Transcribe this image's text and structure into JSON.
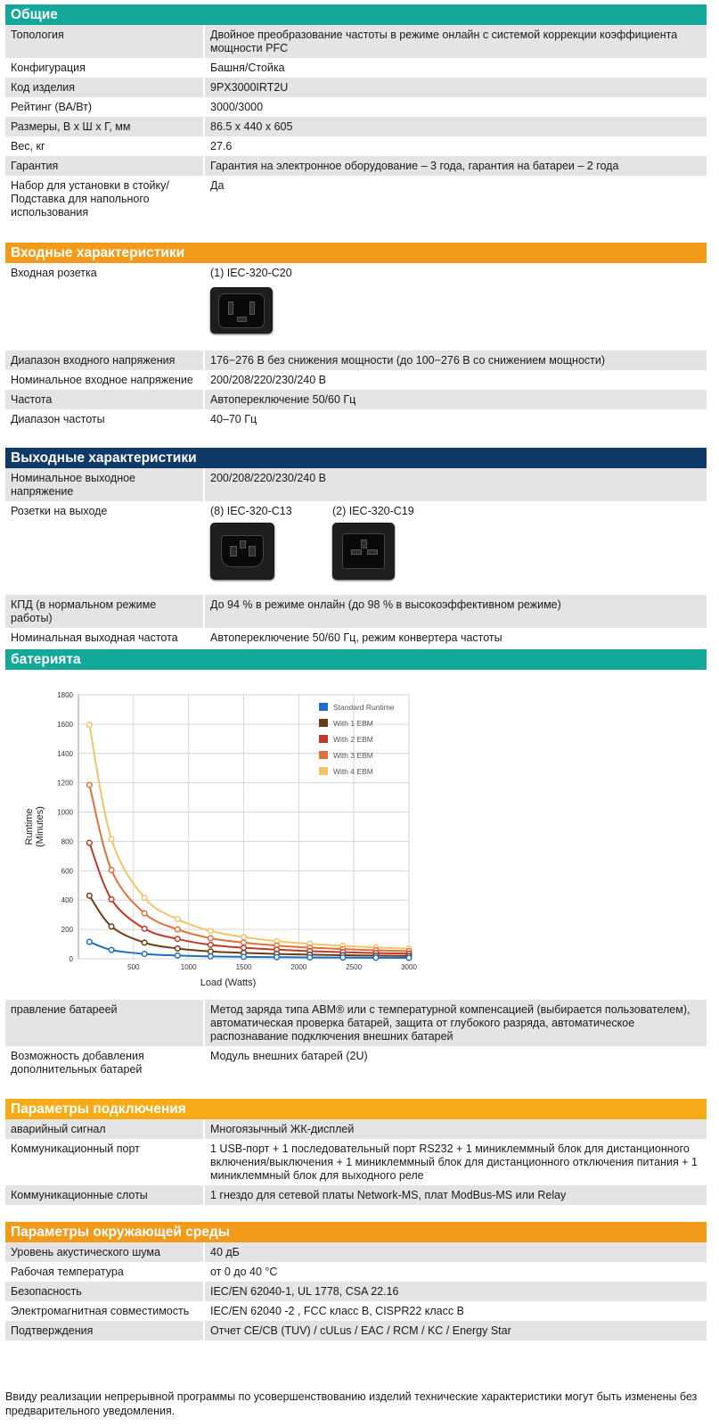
{
  "general": {
    "title": "Общие",
    "rows": [
      {
        "label": "Топология",
        "value": "Двойное преобразование частоты в режиме онлайн с системой коррекции коэффициента мощности PFC"
      },
      {
        "label": "Конфигурация",
        "value": "Башня/Стойка"
      },
      {
        "label": "Код изделия",
        "value": "9PX3000IRT2U"
      },
      {
        "label": "Рейтинг (ВА/Вт)",
        "value": "3000/3000"
      },
      {
        "label": "Размеры, В х Ш х Г, мм",
        "value": "86.5 x 440 x 605"
      },
      {
        "label": "Вес, кг",
        "value": "27.6"
      },
      {
        "label": "Гарантия",
        "value": "Гарантия на электронное оборудование – 3 года, гарантия на батареи – 2 года"
      },
      {
        "label": "Набор для установки в стойку/ Подставка для напольного использования",
        "value": "Да"
      }
    ]
  },
  "input": {
    "title": "Входные характеристики",
    "outlet_label": "Входная розетка",
    "outlet_value": "(1) IEC-320-C20",
    "rows": [
      {
        "label": "Диапазон входного напряжения",
        "value": "176−276 В без снижения мощности (до 100−276 В со снижением мощности)"
      },
      {
        "label": "Номинальное входное напряжение",
        "value": "200/208/220/230/240 В"
      },
      {
        "label": "Частота",
        "value": "Автопереключение 50/60 Гц"
      },
      {
        "label": "Диапазон частоты",
        "value": "40–70 Гц"
      }
    ]
  },
  "output": {
    "title": "Выходные характеристики",
    "voltage_label": "Номинальное выходное напряжение",
    "voltage_value": "200/208/220/230/240 В",
    "outlets_label": "Розетки на выходе",
    "outlet_c13": "(8) IEC-320-C13",
    "outlet_c19": "(2) IEC-320-C19",
    "rows": [
      {
        "label": "КПД (в нормальном режиме работы)",
        "value": "До 94 % в режиме онлайн (до 98 % в высокоэффективном режиме)"
      },
      {
        "label": "Номинальная выходная частота",
        "value": "Автопереключение 50/60 Гц, режим конвертера частоты"
      }
    ]
  },
  "battery": {
    "title": "батерията",
    "rows": [
      {
        "label": "правление батареей",
        "value": "Метод заряда типа ABM® или с температурной компенсацией (выбирается пользователем), автоматическая проверка батарей, защита от глубокого разряда, автоматическое распознавание подключения внешних батарей"
      },
      {
        "label": "Возможность добавления дополнительных батарей",
        "value": "Модуль внешних батарей (2U)"
      }
    ]
  },
  "chart_data": {
    "type": "line",
    "title": "",
    "xlabel": "Load (Watts)",
    "ylabel": "Runtime (Minutes)",
    "xlim": [
      0,
      3000
    ],
    "ylim": [
      0,
      1800
    ],
    "xticks": [
      500,
      1000,
      1500,
      2000,
      2500,
      3000
    ],
    "yticks": [
      0,
      200,
      400,
      600,
      800,
      1000,
      1200,
      1400,
      1600,
      1800
    ],
    "grid": true,
    "legend": "top-right",
    "x": [
      100,
      300,
      600,
      900,
      1200,
      1500,
      1800,
      2100,
      2400,
      2700,
      3000
    ],
    "series": [
      {
        "name": "Standard Runtime",
        "color": "#1f6fc0",
        "values": [
          115,
          60,
          33,
          22,
          16,
          13,
          11,
          9,
          8,
          7,
          6
        ]
      },
      {
        "name": "With 1 EBM",
        "color": "#6b3d12",
        "values": [
          430,
          220,
          110,
          70,
          50,
          40,
          33,
          28,
          24,
          21,
          19
        ]
      },
      {
        "name": "With 2 EBM",
        "color": "#c0392b",
        "values": [
          790,
          405,
          205,
          135,
          95,
          75,
          62,
          52,
          45,
          39,
          35
        ]
      },
      {
        "name": "With 3 EBM",
        "color": "#e0703a",
        "values": [
          1185,
          605,
          310,
          200,
          140,
          110,
          90,
          76,
          66,
          58,
          52
        ]
      },
      {
        "name": "With 4 EBM",
        "color": "#f2c46a",
        "values": [
          1595,
          815,
          415,
          270,
          190,
          148,
          120,
          102,
          88,
          77,
          69
        ]
      }
    ]
  },
  "communication": {
    "title": "Параметры подключения",
    "rows": [
      {
        "label": "аварийный сигнал",
        "value": "Многоязычный ЖК-дисплей"
      },
      {
        "label": "Коммуникационный порт",
        "value": "1 USB-порт + 1 последовательный порт RS232 + 1 миниклеммный блок для дистанционного включения/выключения + 1 миниклеммный блок для дистанционного отключения питания + 1 миниклеммный блок для выходного реле"
      },
      {
        "label": "Коммуникационные слоты",
        "value": "1 гнездо для сетевой платы Network-MS, плат ModBus-MS или Relay"
      }
    ]
  },
  "environment": {
    "title": "Параметры окружающей среды",
    "rows": [
      {
        "label": "Уровень акустического шума",
        "value": "40 дБ"
      },
      {
        "label": "Рабочая температура",
        "value": "от 0 до 40 °C"
      },
      {
        "label": "Безопасность",
        "value": "IEC/EN 62040-1, UL 1778, CSA 22.16"
      },
      {
        "label": "Электромагнитная совместимость",
        "value": "IEC/EN 62040 -2 , FCC класс B, CISPR22 класс B"
      },
      {
        "label": "Подтверждения",
        "value": "Отчет CE/CB (TUV) / cULus / EAC / RCM / KC / Energy Star"
      }
    ]
  },
  "footnote": "Ввиду реализации непрерывной программы по усовершенствованию изделий технические характеристики могут быть изменены без предварительного уведомления."
}
